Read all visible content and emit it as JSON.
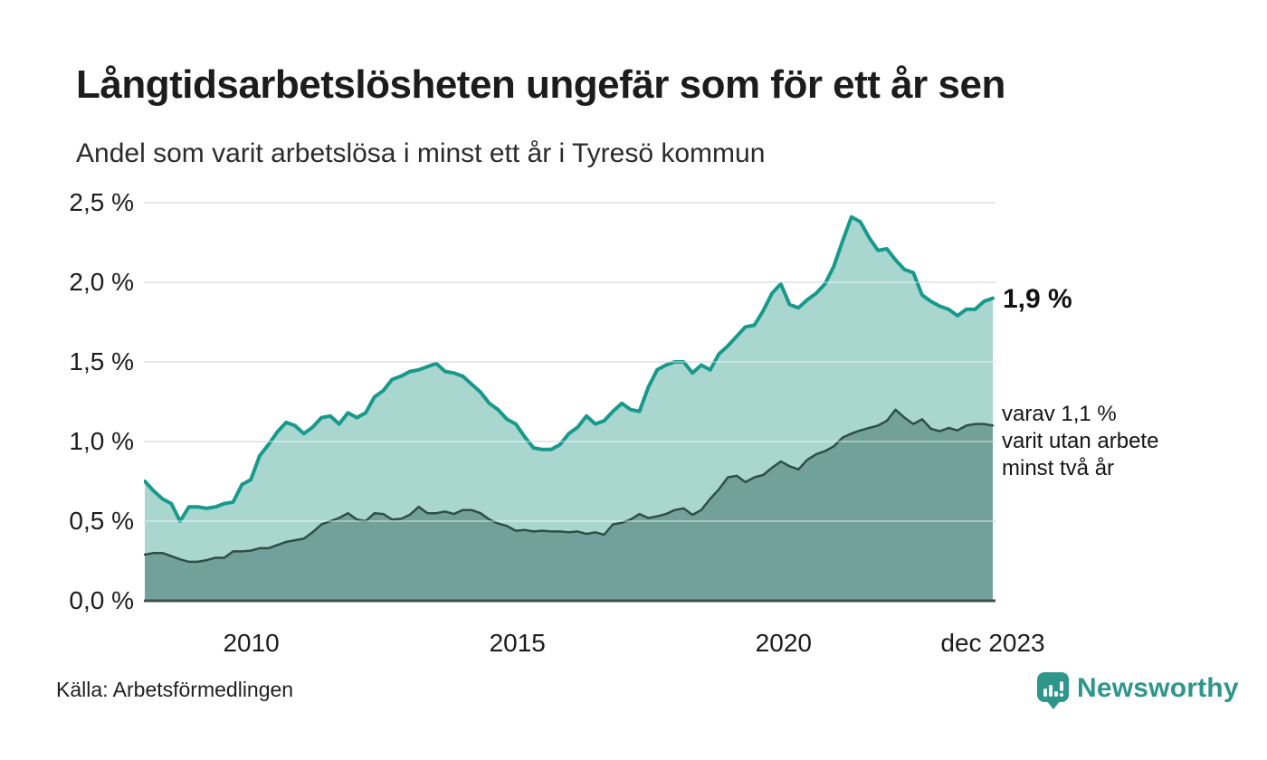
{
  "header": {
    "title": "Långtidsarbetslösheten ungefär som för ett år sen",
    "subtitle": "Andel som varit arbetslösa i minst ett år i Tyresö kommun"
  },
  "annotations": {
    "primary": "1,9 %",
    "secondary": [
      "varav 1,1 %",
      "varit utan arbete",
      "minst två år"
    ]
  },
  "footer": {
    "source": "Källa: Arbetsförmedlingen",
    "logo_text": "Newsworthy",
    "logo_icon": "speech-bubble-bar-chart-icon"
  },
  "colors": {
    "series1_line": "#17998c",
    "series1_fill": "#a9d7d0",
    "series2_line": "#2f4e4a",
    "series2_fill": "#72a19b",
    "gridline": "#d9d9d9",
    "axis": "#434c4c",
    "brand_teal": "#2e968b",
    "text": "#1c1c1c"
  },
  "chart_data": {
    "type": "area",
    "title": "Långtidsarbetslösheten ungefär som för ett år sen",
    "subtitle": "Andel som varit arbetslösa i minst ett år i Tyresö kommun",
    "unit": "%",
    "grid": true,
    "ylim": [
      0,
      2.5
    ],
    "x_start": 2008.0,
    "x_end": 2023.93,
    "y_ticks": [
      {
        "value": 0.0,
        "label": "0,0 %"
      },
      {
        "value": 0.5,
        "label": "0,5 %"
      },
      {
        "value": 1.0,
        "label": "1,0 %"
      },
      {
        "value": 1.5,
        "label": "1,5 %"
      },
      {
        "value": 2.0,
        "label": "2,0 %"
      },
      {
        "value": 2.5,
        "label": "2,5 %"
      }
    ],
    "x_ticks": [
      {
        "value": 2010,
        "label": "2010"
      },
      {
        "value": 2015,
        "label": "2015"
      },
      {
        "value": 2020,
        "label": "2020"
      },
      {
        "value": 2023.93,
        "label": "dec 2023"
      }
    ],
    "grid_values": [
      0.5,
      1.0,
      1.5,
      2.0,
      2.5
    ],
    "series": [
      {
        "name": "Arbetslösa minst ett år",
        "end_label": "1,9 %",
        "end_value": 1.9,
        "values": [
          0.75,
          0.69,
          0.64,
          0.61,
          0.5,
          0.59,
          0.59,
          0.58,
          0.59,
          0.61,
          0.62,
          0.73,
          0.76,
          0.91,
          0.98,
          1.06,
          1.12,
          1.1,
          1.05,
          1.09,
          1.15,
          1.16,
          1.11,
          1.18,
          1.15,
          1.18,
          1.28,
          1.32,
          1.39,
          1.41,
          1.44,
          1.45,
          1.47,
          1.49,
          1.44,
          1.43,
          1.41,
          1.36,
          1.31,
          1.24,
          1.2,
          1.14,
          1.11,
          1.03,
          0.96,
          0.95,
          0.95,
          0.98,
          1.05,
          1.09,
          1.16,
          1.11,
          1.13,
          1.19,
          1.24,
          1.2,
          1.19,
          1.34,
          1.45,
          1.48,
          1.5,
          1.5,
          1.43,
          1.48,
          1.45,
          1.55,
          1.6,
          1.66,
          1.72,
          1.73,
          1.82,
          1.93,
          1.99,
          1.86,
          1.84,
          1.89,
          1.93,
          1.99,
          2.1,
          2.26,
          2.41,
          2.38,
          2.28,
          2.2,
          2.21,
          2.14,
          2.08,
          2.06,
          1.92,
          1.88,
          1.85,
          1.83,
          1.79,
          1.83,
          1.83,
          1.88,
          1.9
        ]
      },
      {
        "name": "varav utan arbete minst två år",
        "end_label": "varav 1,1 % varit utan arbete minst två år",
        "end_value": 1.1,
        "values": [
          0.29,
          0.3,
          0.3,
          0.28,
          0.26,
          0.245,
          0.245,
          0.255,
          0.27,
          0.27,
          0.31,
          0.31,
          0.315,
          0.33,
          0.33,
          0.35,
          0.37,
          0.38,
          0.39,
          0.43,
          0.48,
          0.5,
          0.52,
          0.55,
          0.51,
          0.5,
          0.55,
          0.545,
          0.51,
          0.515,
          0.54,
          0.59,
          0.55,
          0.55,
          0.56,
          0.545,
          0.57,
          0.57,
          0.55,
          0.51,
          0.485,
          0.47,
          0.44,
          0.445,
          0.435,
          0.44,
          0.435,
          0.435,
          0.43,
          0.435,
          0.42,
          0.43,
          0.415,
          0.48,
          0.49,
          0.51,
          0.545,
          0.52,
          0.53,
          0.545,
          0.57,
          0.58,
          0.54,
          0.57,
          0.64,
          0.7,
          0.775,
          0.785,
          0.745,
          0.775,
          0.79,
          0.835,
          0.875,
          0.845,
          0.825,
          0.885,
          0.92,
          0.94,
          0.97,
          1.025,
          1.05,
          1.07,
          1.085,
          1.1,
          1.13,
          1.2,
          1.15,
          1.11,
          1.14,
          1.08,
          1.065,
          1.085,
          1.07,
          1.1,
          1.11,
          1.11,
          1.1
        ]
      }
    ]
  }
}
